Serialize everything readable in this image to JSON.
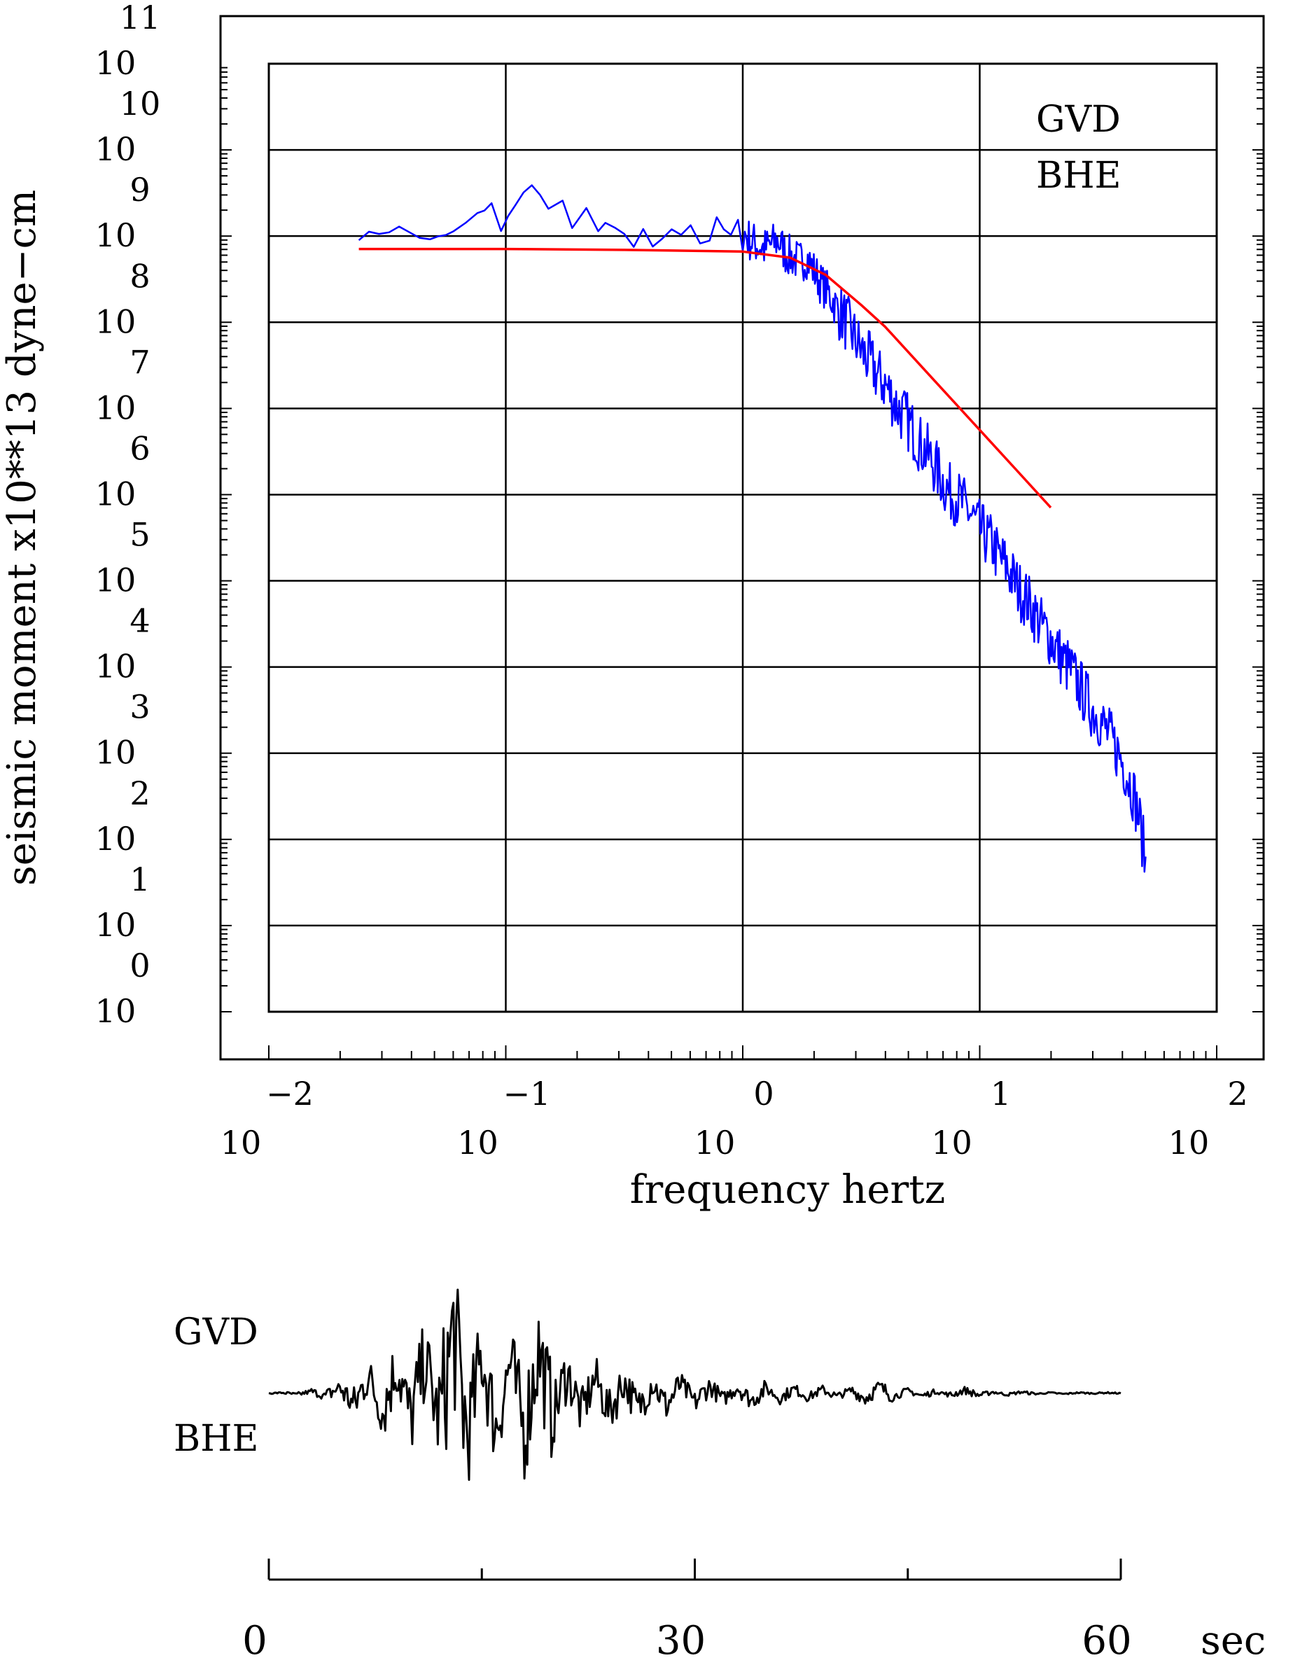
{
  "chart_data": [
    {
      "type": "line",
      "title": "",
      "xlabel": "frequency  hertz",
      "ylabel": "seismic moment x10**13 dyne−cm",
      "x_scale": "log",
      "y_scale": "log",
      "x_range_log10": [
        -2,
        2
      ],
      "y_range_log10": [
        0,
        11
      ],
      "grid": true,
      "x_ticks": [
        {
          "base": "10",
          "exp": "−2"
        },
        {
          "base": "10",
          "exp": "−1"
        },
        {
          "base": "10",
          "exp": "0"
        },
        {
          "base": "10",
          "exp": "1"
        },
        {
          "base": "10",
          "exp": "2"
        }
      ],
      "y_ticks": [
        {
          "base": "10",
          "exp": "0"
        },
        {
          "base": "10",
          "exp": "1"
        },
        {
          "base": "10",
          "exp": "2"
        },
        {
          "base": "10",
          "exp": "3"
        },
        {
          "base": "10",
          "exp": "4"
        },
        {
          "base": "10",
          "exp": "5"
        },
        {
          "base": "10",
          "exp": "6"
        },
        {
          "base": "10",
          "exp": "7"
        },
        {
          "base": "10",
          "exp": "8"
        },
        {
          "base": "10",
          "exp": "9"
        },
        {
          "base": "10",
          "exp": "10"
        },
        {
          "base": "10",
          "exp": "11"
        }
      ],
      "annotations": [
        "GVD",
        "BHE"
      ],
      "colors": {
        "spectrum": "#0000ff",
        "model": "#ff0000"
      },
      "series": [
        {
          "color": "#0000ff",
          "x_log10": [
            -1.62,
            -1.45,
            -1.32,
            -1.22,
            -1.12,
            -1.06,
            -1.02,
            -0.96,
            -0.89,
            -0.82,
            -0.76,
            -0.72,
            -0.66,
            -0.61,
            -0.58,
            -0.54,
            -0.5,
            -0.46,
            -0.42,
            -0.38,
            -0.34,
            -0.3,
            -0.26,
            -0.22,
            -0.18,
            -0.14,
            -0.11,
            -0.08,
            -0.05,
            -0.02,
            0.0,
            0.03,
            0.06,
            0.09,
            0.12,
            0.15,
            0.18,
            0.21,
            0.24,
            0.27,
            0.3,
            0.33,
            0.36,
            0.39,
            0.42,
            0.45,
            0.48,
            0.51,
            0.54,
            0.57,
            0.6,
            0.63,
            0.66,
            0.69,
            0.72,
            0.75,
            0.78,
            0.81,
            0.84,
            0.87,
            0.9,
            0.93,
            0.96,
            0.99,
            1.02,
            1.05,
            1.08,
            1.11,
            1.14,
            1.17,
            1.2,
            1.23,
            1.26,
            1.29,
            1.32,
            1.35,
            1.38,
            1.41,
            1.44,
            1.47,
            1.5,
            1.53,
            1.56,
            1.59,
            1.62,
            1.65,
            1.68,
            1.7
          ],
          "y_log10": [
            9.0,
            9.1,
            8.95,
            9.05,
            9.25,
            9.4,
            9.05,
            9.4,
            9.6,
            9.3,
            9.45,
            9.1,
            9.3,
            9.05,
            9.15,
            9.1,
            9.0,
            8.85,
            9.1,
            8.9,
            8.95,
            9.1,
            9.05,
            9.15,
            9.0,
            9.1,
            9.05,
            9.1,
            8.95,
            9.05,
            9.1,
            9.0,
            8.95,
            8.9,
            8.95,
            9.0,
            8.85,
            8.8,
            8.75,
            8.8,
            8.65,
            8.5,
            8.4,
            8.25,
            8.15,
            8.0,
            7.85,
            7.7,
            7.6,
            7.45,
            7.35,
            7.2,
            7.05,
            6.95,
            6.8,
            6.65,
            6.55,
            6.4,
            6.25,
            6.1,
            6.05,
            5.95,
            5.85,
            5.7,
            5.6,
            5.5,
            5.35,
            5.25,
            5.1,
            4.95,
            4.85,
            4.7,
            4.55,
            4.45,
            4.3,
            4.15,
            4.05,
            3.9,
            3.75,
            3.6,
            3.5,
            3.35,
            3.2,
            3.05,
            2.85,
            2.6,
            2.2,
            1.8
          ]
        },
        {
          "color": "#ff0000",
          "x_log10": [
            -1.62,
            -1.0,
            -0.5,
            0.0,
            0.2,
            0.35,
            0.5,
            0.6,
            0.8,
            1.0,
            1.15,
            1.3
          ],
          "y_log10": [
            8.85,
            8.85,
            8.84,
            8.82,
            8.75,
            8.55,
            8.2,
            7.95,
            7.35,
            6.75,
            6.3,
            5.85
          ]
        }
      ]
    },
    {
      "type": "line",
      "title": "",
      "xlabel": "",
      "ylabel": "",
      "x_unit": "sec",
      "x_range": [
        0,
        60
      ],
      "y_range": [
        -1,
        1
      ],
      "x_ticks": [
        "0",
        "30",
        "60"
      ],
      "annotations": [
        "GVD",
        "BHE"
      ],
      "colors": {
        "trace": "#000000"
      },
      "series": [
        {
          "color": "#000000",
          "x": [
            0,
            1,
            2,
            3,
            4,
            5,
            6,
            7,
            8,
            9,
            10,
            11,
            12,
            13,
            14,
            15,
            16,
            17,
            18,
            19,
            20,
            21,
            22,
            23,
            24,
            25,
            26,
            27,
            28,
            29,
            30,
            31,
            32,
            33,
            34,
            35,
            36,
            37,
            38,
            39,
            40,
            41,
            42,
            43,
            44,
            45,
            46,
            47,
            48,
            49,
            50,
            51,
            52,
            53,
            54,
            55,
            56,
            57,
            58,
            59,
            60
          ],
          "y": [
            0.0,
            0.01,
            -0.02,
            0.03,
            -0.05,
            0.1,
            -0.2,
            0.28,
            -0.3,
            0.45,
            -0.4,
            0.55,
            -0.5,
            1.0,
            -0.7,
            0.6,
            -0.55,
            0.5,
            -0.6,
            0.7,
            -0.4,
            0.35,
            -0.3,
            0.25,
            -0.3,
            0.2,
            -0.25,
            0.18,
            -0.2,
            0.15,
            -0.15,
            0.12,
            -0.1,
            0.1,
            -0.12,
            0.08,
            -0.08,
            0.07,
            -0.06,
            0.06,
            -0.05,
            0.05,
            -0.08,
            0.1,
            -0.05,
            0.04,
            -0.04,
            0.03,
            -0.03,
            0.05,
            -0.03,
            0.02,
            -0.02,
            0.02,
            -0.01,
            0.01,
            -0.01,
            0.01,
            0.0,
            0.01,
            0.0
          ]
        }
      ]
    }
  ]
}
